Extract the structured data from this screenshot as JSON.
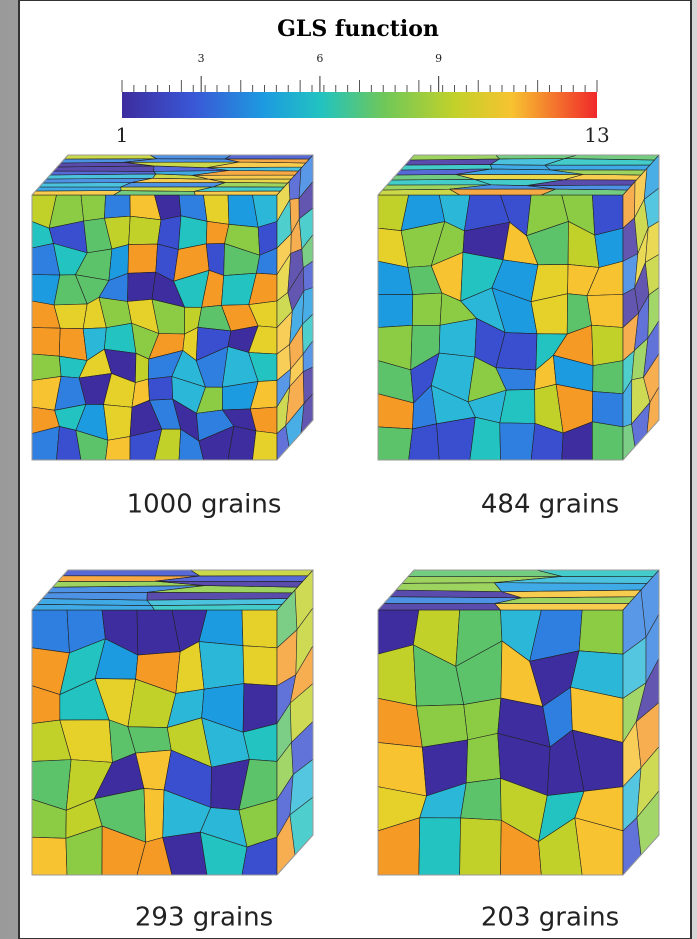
{
  "figure": {
    "title": "GLS function",
    "colorbar": {
      "min": 1,
      "max": 13,
      "ticks": [
        3,
        6,
        9
      ]
    },
    "panels": [
      {
        "caption": "1000 grains"
      },
      {
        "caption": "484 grains"
      },
      {
        "caption": "293 grains"
      },
      {
        "caption": "203 grains"
      }
    ]
  }
}
